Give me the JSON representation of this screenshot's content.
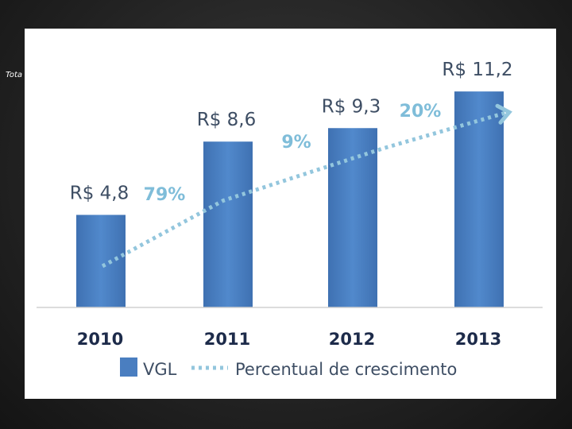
{
  "side_note": "Tota",
  "chart_data": {
    "type": "bar",
    "categories": [
      "2010",
      "2011",
      "2012",
      "2013"
    ],
    "values": [
      4.8,
      8.6,
      9.3,
      11.2
    ],
    "value_labels": [
      "R$ 4,8",
      "R$ 8,6",
      "R$ 9,3",
      "R$ 11,2"
    ],
    "growth_labels": [
      "79%",
      "9%",
      "20%"
    ],
    "series": [
      {
        "name": "VGL",
        "type": "bar",
        "color": "#4a7ec0"
      },
      {
        "name": "Percentual de crescimento",
        "type": "line",
        "style": "dotted-arrow",
        "color": "#93c6dd"
      }
    ],
    "ylim": [
      0,
      12.4
    ],
    "grid": false,
    "legend_position": "bottom"
  }
}
